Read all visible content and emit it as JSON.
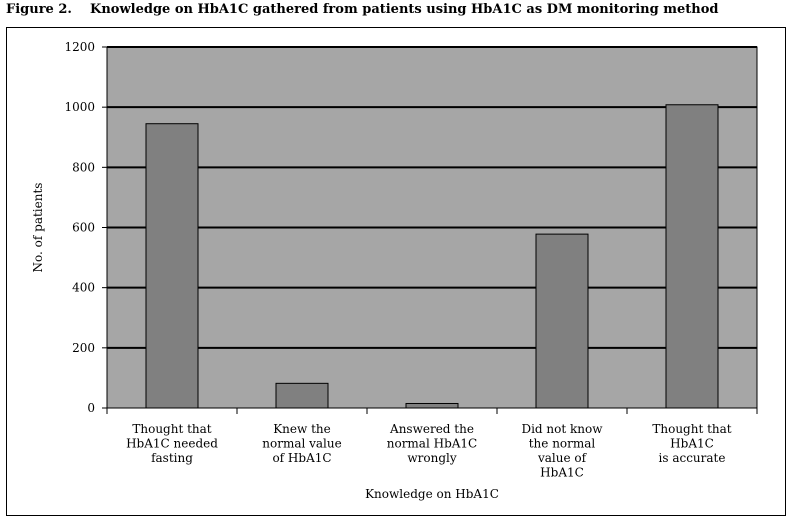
{
  "figure": {
    "title": "Figure 2.    Knowledge on HbA1C gathered from patients using HbA1C as DM monitoring method"
  },
  "colors": {
    "plot_background": "#a6a6a6",
    "bar_fill": "#808080",
    "gridline": "#000000"
  },
  "chart_data": {
    "type": "bar",
    "title": "Knowledge on HbA1C gathered from patients using HbA1C as DM monitoring method",
    "xlabel": "Knowledge on HbA1C",
    "ylabel": "No. of patients",
    "ylim": [
      0,
      1200
    ],
    "yticks": [
      0,
      200,
      400,
      600,
      800,
      1000,
      1200
    ],
    "grid": true,
    "legend": "none",
    "categories": [
      [
        "Thought that",
        "HbA1C needed",
        "fasting"
      ],
      [
        "Knew the",
        "normal value",
        "of HbA1C"
      ],
      [
        "Answered the",
        "normal HbA1C",
        "wrongly"
      ],
      [
        "Did not know",
        "the normal",
        "value of",
        "HbA1C"
      ],
      [
        "Thought that",
        "HbA1C",
        "is accurate"
      ]
    ],
    "values": [
      945,
      82,
      15,
      578,
      1008
    ]
  }
}
